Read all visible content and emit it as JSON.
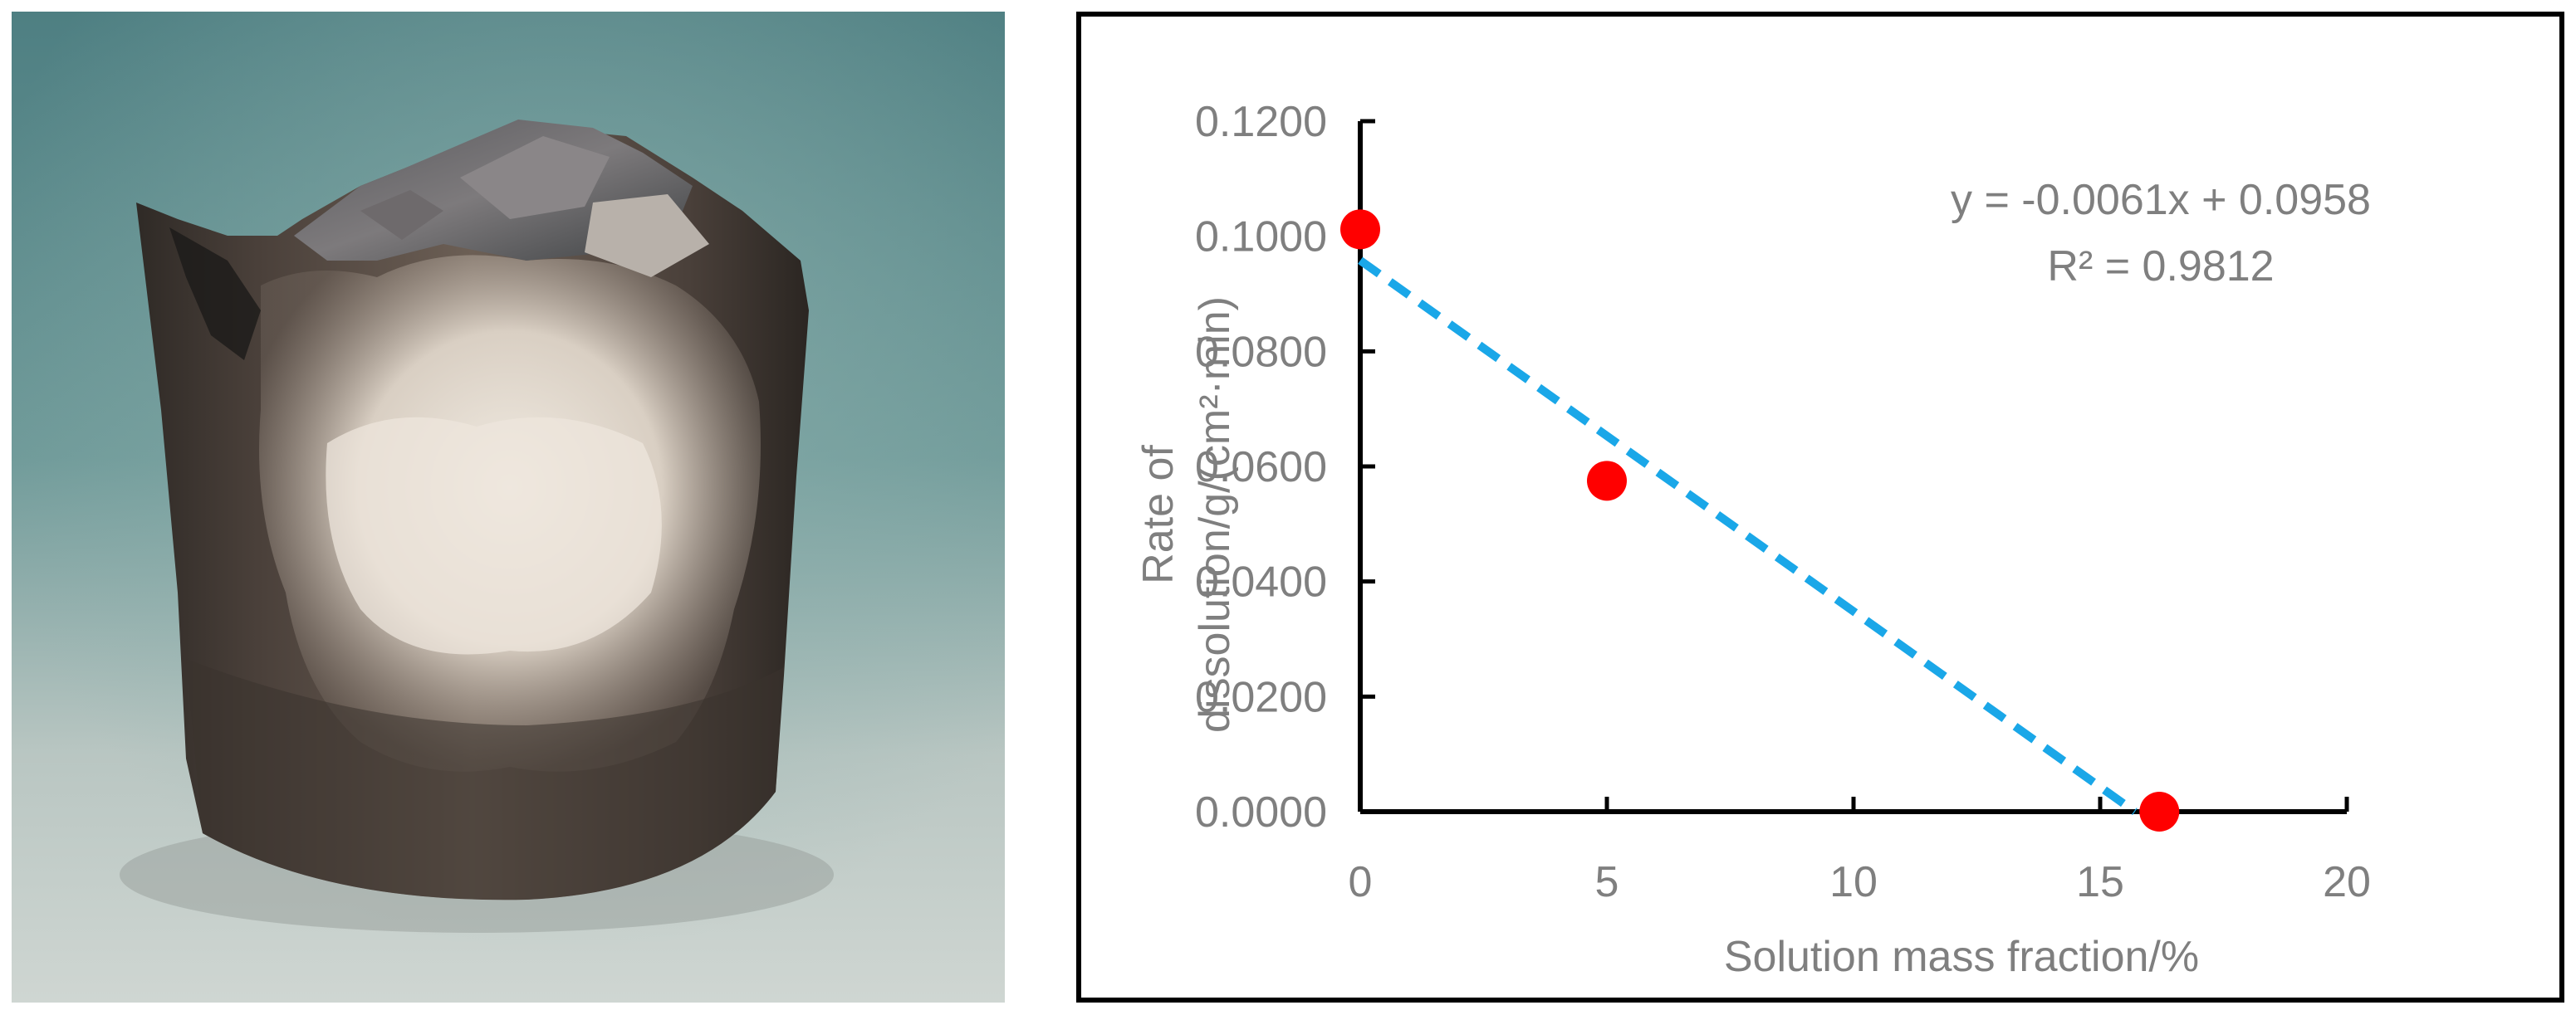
{
  "chart_data": {
    "type": "scatter",
    "xlabel": "Solution mass fraction/%",
    "ylabel_lines": [
      "Rate of",
      "dissolution/g/(cm²·min)"
    ],
    "xlim": [
      0,
      20
    ],
    "ylim": [
      0,
      0.12
    ],
    "x_ticks": [
      "0",
      "5",
      "10",
      "15",
      "20"
    ],
    "y_ticks": [
      "0.0000",
      "0.0200",
      "0.0400",
      "0.0600",
      "0.0800",
      "0.1000",
      "0.1200"
    ],
    "series": [
      {
        "x": [
          0,
          5,
          16.2
        ],
        "y": [
          0.1012,
          0.0575,
          0.0
        ],
        "color": "#ff0000"
      }
    ],
    "trendline": {
      "type": "linear",
      "slope": -0.0061,
      "intercept": 0.0958,
      "color": "#1aa7e8",
      "dashed": true
    },
    "annotations": [
      "y = -0.0061x + 0.0958",
      "R² = 0.9812"
    ],
    "grid": false
  },
  "photo": {
    "subject": "dissolved core sample",
    "background_color": "#5f8d8d"
  }
}
